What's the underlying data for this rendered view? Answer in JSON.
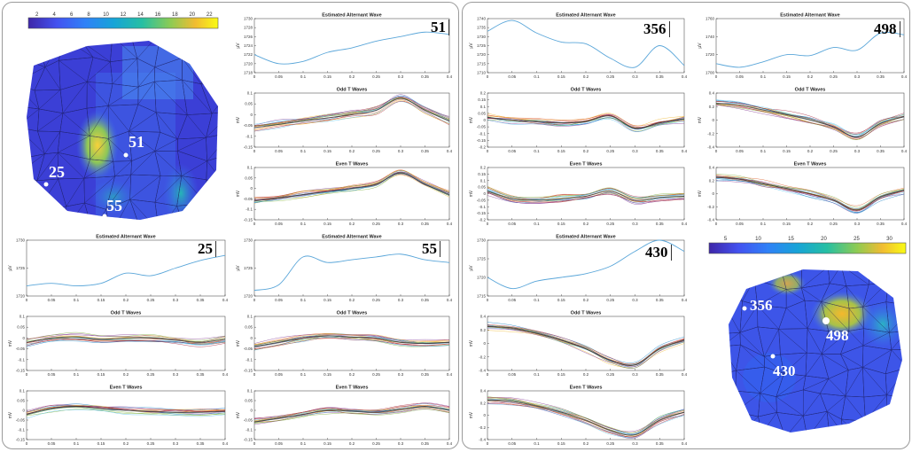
{
  "panels": [
    {
      "colorbar": {
        "ticks": [
          "2",
          "4",
          "6",
          "8",
          "10",
          "12",
          "14",
          "16",
          "18",
          "20",
          "22"
        ]
      },
      "mesh_labels": [
        "51",
        "25",
        "55"
      ]
    },
    {
      "colorbar": {
        "ticks": [
          "5",
          "10",
          "15",
          "20",
          "25",
          "30"
        ]
      },
      "mesh_labels": [
        "356",
        "498",
        "430"
      ]
    }
  ],
  "chart_data": [
    {
      "id": "51",
      "type": "line",
      "title": "Estimated Alternant Wave",
      "ylabel": "µV",
      "xlabel": "",
      "xlim": [
        0,
        0.4
      ],
      "ylim": [
        1718,
        1730
      ],
      "xticks": [
        "0",
        "0.05",
        "0.1",
        "0.15",
        "0.2",
        "0.25",
        "0.3",
        "0.35",
        "0.4"
      ],
      "yticks": [
        "1718",
        "1720",
        "1722",
        "1724",
        "1726",
        "1728",
        "1730"
      ],
      "x": [
        0,
        0.05,
        0.1,
        0.15,
        0.2,
        0.25,
        0.3,
        0.35,
        0.4
      ],
      "y": [
        1722,
        1720,
        1720.5,
        1722.5,
        1723.5,
        1725,
        1726,
        1727,
        1726.5
      ]
    },
    {
      "id": "51",
      "type": "line",
      "title": "Odd T Waves",
      "ylabel": "mV",
      "xlabel": "",
      "xlim": [
        0,
        0.4
      ],
      "ylim": [
        -0.15,
        0.1
      ],
      "xticks": [
        "0",
        "0.05",
        "0.1",
        "0.15",
        "0.2",
        "0.25",
        "0.3",
        "0.35",
        "0.4"
      ],
      "yticks": [
        "-0.15",
        "-0.1",
        "-0.05",
        "0",
        "0.05",
        "0.1"
      ],
      "x": [
        0,
        0.05,
        0.1,
        0.15,
        0.2,
        0.25,
        0.3,
        0.35,
        0.4
      ],
      "y": [
        -0.06,
        -0.045,
        -0.03,
        -0.015,
        0,
        0.02,
        0.075,
        0.02,
        -0.03
      ]
    },
    {
      "id": "51",
      "type": "line",
      "title": "Even T Waves",
      "ylabel": "mV",
      "xlabel": "",
      "xlim": [
        0,
        0.4
      ],
      "ylim": [
        -0.15,
        0.1
      ],
      "xticks": [
        "0",
        "0.05",
        "0.1",
        "0.15",
        "0.2",
        "0.25",
        "0.3",
        "0.35",
        "0.4"
      ],
      "yticks": [
        "-0.15",
        "-0.1",
        "-0.05",
        "0",
        "0.05",
        "0.1"
      ],
      "x": [
        0,
        0.05,
        0.1,
        0.15,
        0.2,
        0.25,
        0.3,
        0.35,
        0.4
      ],
      "y": [
        -0.06,
        -0.045,
        -0.03,
        -0.015,
        0,
        0.02,
        0.075,
        0.02,
        -0.03
      ]
    },
    {
      "id": "25",
      "type": "line",
      "title": "Estimated Alternant Wave",
      "ylabel": "µV",
      "xlabel": "",
      "xlim": [
        0,
        0.4
      ],
      "ylim": [
        1719,
        1730
      ],
      "xticks": [
        "0",
        "0.05",
        "0.1",
        "0.15",
        "0.2",
        "0.25",
        "0.3",
        "0.35",
        "0.4"
      ],
      "yticks": [
        "1720",
        "1725",
        "1730"
      ],
      "x": [
        0,
        0.05,
        0.1,
        0.15,
        0.2,
        0.25,
        0.3,
        0.35,
        0.4
      ],
      "y": [
        1721,
        1721.5,
        1721,
        1721.5,
        1723.5,
        1723,
        1724.5,
        1726,
        1727
      ]
    },
    {
      "id": "25",
      "type": "line",
      "title": "Odd T Waves",
      "ylabel": "mV",
      "xlabel": "",
      "xlim": [
        0,
        0.4
      ],
      "ylim": [
        -0.15,
        0.1
      ],
      "xticks": [
        "0",
        "0.05",
        "0.1",
        "0.15",
        "0.2",
        "0.25",
        "0.3",
        "0.35",
        "0.4"
      ],
      "yticks": [
        "-0.15",
        "-0.1",
        "-0.05",
        "0",
        "0.05",
        "0.1"
      ],
      "x": [
        0,
        0.05,
        0.1,
        0.15,
        0.2,
        0.25,
        0.3,
        0.35,
        0.4
      ],
      "y": [
        -0.02,
        0,
        0.005,
        -0.005,
        0,
        0,
        -0.01,
        -0.02,
        -0.005
      ]
    },
    {
      "id": "25",
      "type": "line",
      "title": "Even T Waves",
      "ylabel": "mV",
      "xlabel": "",
      "xlim": [
        0,
        0.4
      ],
      "ylim": [
        -0.15,
        0.1
      ],
      "xticks": [
        "0",
        "0.05",
        "0.1",
        "0.15",
        "0.2",
        "0.25",
        "0.3",
        "0.35",
        "0.4"
      ],
      "yticks": [
        "-0.15",
        "-0.1",
        "-0.05",
        "0",
        "0.05",
        "0.1"
      ],
      "x": [
        0,
        0.05,
        0.1,
        0.15,
        0.2,
        0.25,
        0.3,
        0.35,
        0.4
      ],
      "y": [
        -0.02,
        0.01,
        0.02,
        0.01,
        0,
        -0.005,
        -0.01,
        -0.01,
        -0.005
      ]
    },
    {
      "id": "55",
      "type": "line",
      "title": "Estimated Alternant Wave",
      "ylabel": "µV",
      "xlabel": "",
      "xlim": [
        0,
        0.4
      ],
      "ylim": [
        1720,
        1730
      ],
      "xticks": [
        "0",
        "0.05",
        "0.1",
        "0.15",
        "0.2",
        "0.25",
        "0.3",
        "0.35",
        "0.4"
      ],
      "yticks": [
        "1720",
        "1725",
        "1730"
      ],
      "x": [
        0,
        0.05,
        0.1,
        0.15,
        0.2,
        0.25,
        0.3,
        0.35,
        0.4
      ],
      "y": [
        1721,
        1722,
        1727,
        1726,
        1726.5,
        1727,
        1727.5,
        1726.5,
        1726
      ]
    },
    {
      "id": "55",
      "type": "line",
      "title": "Odd T Waves",
      "ylabel": "mV",
      "xlabel": "",
      "xlim": [
        0,
        0.4
      ],
      "ylim": [
        -0.15,
        0.1
      ],
      "xticks": [
        "0",
        "0.05",
        "0.1",
        "0.15",
        "0.2",
        "0.25",
        "0.3",
        "0.35",
        "0.4"
      ],
      "yticks": [
        "-0.15",
        "-0.1",
        "-0.05",
        "0",
        "0.05",
        "0.1"
      ],
      "x": [
        0,
        0.05,
        0.1,
        0.15,
        0.2,
        0.25,
        0.3,
        0.35,
        0.4
      ],
      "y": [
        -0.04,
        -0.02,
        0,
        0.01,
        0.005,
        0,
        -0.02,
        -0.025,
        -0.02
      ]
    },
    {
      "id": "55",
      "type": "line",
      "title": "Even T Waves",
      "ylabel": "mV",
      "xlabel": "",
      "xlim": [
        0,
        0.4
      ],
      "ylim": [
        -0.15,
        0.1
      ],
      "xticks": [
        "0",
        "0.05",
        "0.1",
        "0.15",
        "0.2",
        "0.25",
        "0.3",
        "0.35",
        "0.4"
      ],
      "yticks": [
        "-0.15",
        "-0.1",
        "-0.05",
        "0",
        "0.05",
        "0.1"
      ],
      "x": [
        0,
        0.05,
        0.1,
        0.15,
        0.2,
        0.25,
        0.3,
        0.35,
        0.4
      ],
      "y": [
        -0.06,
        -0.04,
        -0.02,
        0,
        -0.005,
        -0.01,
        0.005,
        0.02,
        0
      ]
    },
    {
      "id": "356",
      "type": "line",
      "title": "Estimated Alternant Wave",
      "ylabel": "µV",
      "xlabel": "",
      "xlim": [
        0,
        0.4
      ],
      "ylim": [
        1710,
        1740
      ],
      "xticks": [
        "0",
        "0.05",
        "0.1",
        "0.15",
        "0.2",
        "0.25",
        "0.3",
        "0.35",
        "0.4"
      ],
      "yticks": [
        "1710",
        "1715",
        "1720",
        "1725",
        "1730",
        "1735",
        "1740"
      ],
      "x": [
        0,
        0.05,
        0.1,
        0.15,
        0.2,
        0.25,
        0.3,
        0.35,
        0.4
      ],
      "y": [
        1733,
        1739,
        1732,
        1727,
        1726,
        1718,
        1713,
        1725,
        1714
      ]
    },
    {
      "id": "356",
      "type": "line",
      "title": "Odd T Waves",
      "ylabel": "mV",
      "xlabel": "",
      "xlim": [
        0,
        0.4
      ],
      "ylim": [
        -0.2,
        0.2
      ],
      "xticks": [
        "0",
        "0.05",
        "0.1",
        "0.15",
        "0.2",
        "0.25",
        "0.3",
        "0.35",
        "0.4"
      ],
      "yticks": [
        "-0.2",
        "-0.15",
        "-0.1",
        "-0.05",
        "0",
        "0.05",
        "0.1",
        "0.15",
        "0.2"
      ],
      "x": [
        0,
        0.05,
        0.1,
        0.15,
        0.2,
        0.25,
        0.3,
        0.35,
        0.4
      ],
      "y": [
        0.02,
        0,
        -0.01,
        -0.02,
        -0.01,
        0.03,
        -0.06,
        -0.02,
        0.01
      ]
    },
    {
      "id": "356",
      "type": "line",
      "title": "Even T Waves",
      "ylabel": "mV",
      "xlabel": "",
      "xlim": [
        0,
        0.4
      ],
      "ylim": [
        -0.2,
        0.2
      ],
      "xticks": [
        "0",
        "0.05",
        "0.1",
        "0.15",
        "0.2",
        "0.25",
        "0.3",
        "0.35",
        "0.4"
      ],
      "yticks": [
        "-0.2",
        "-0.15",
        "-0.1",
        "-0.05",
        "0",
        "0.05",
        "0.1",
        "0.15",
        "0.2"
      ],
      "x": [
        0,
        0.05,
        0.1,
        0.15,
        0.2,
        0.25,
        0.3,
        0.35,
        0.4
      ],
      "y": [
        0.02,
        -0.04,
        -0.05,
        -0.04,
        -0.02,
        0.02,
        -0.05,
        -0.03,
        -0.02
      ]
    },
    {
      "id": "430",
      "type": "line",
      "title": "Estimated Alternant Wave",
      "ylabel": "µV",
      "xlabel": "",
      "xlim": [
        0,
        0.4
      ],
      "ylim": [
        1715,
        1730
      ],
      "xticks": [
        "0",
        "0.05",
        "0.1",
        "0.15",
        "0.2",
        "0.25",
        "0.3",
        "0.35",
        "0.4"
      ],
      "yticks": [
        "1715",
        "1720",
        "1725",
        "1730"
      ],
      "x": [
        0,
        0.05,
        0.1,
        0.15,
        0.2,
        0.25,
        0.3,
        0.35,
        0.4
      ],
      "y": [
        1720,
        1717,
        1719,
        1720,
        1721,
        1723,
        1727,
        1730,
        1727
      ]
    },
    {
      "id": "430",
      "type": "line",
      "title": "Odd T Waves",
      "ylabel": "mV",
      "xlabel": "",
      "xlim": [
        0,
        0.4
      ],
      "ylim": [
        -0.4,
        0.4
      ],
      "xticks": [
        "0",
        "0.05",
        "0.1",
        "0.15",
        "0.2",
        "0.25",
        "0.3",
        "0.35",
        "0.4"
      ],
      "yticks": [
        "-0.4",
        "-0.2",
        "0",
        "0.2",
        "0.4"
      ],
      "x": [
        0,
        0.05,
        0.1,
        0.15,
        0.2,
        0.25,
        0.3,
        0.35,
        0.4
      ],
      "y": [
        0.25,
        0.23,
        0.15,
        0.05,
        -0.08,
        -0.25,
        -0.32,
        -0.08,
        0.05
      ]
    },
    {
      "id": "430",
      "type": "line",
      "title": "Even T Waves",
      "ylabel": "mV",
      "xlabel": "",
      "xlim": [
        0,
        0.4
      ],
      "ylim": [
        -0.4,
        0.4
      ],
      "xticks": [
        "0",
        "0.05",
        "0.1",
        "0.15",
        "0.2",
        "0.25",
        "0.3",
        "0.35",
        "0.4"
      ],
      "yticks": [
        "-0.4",
        "-0.2",
        "0",
        "0.2",
        "0.4"
      ],
      "x": [
        0,
        0.05,
        0.1,
        0.15,
        0.2,
        0.25,
        0.3,
        0.35,
        0.4
      ],
      "y": [
        0.25,
        0.23,
        0.15,
        0.05,
        -0.08,
        -0.25,
        -0.32,
        -0.08,
        0.05
      ]
    },
    {
      "id": "498",
      "type": "line",
      "title": "Estimated Alternant Wave",
      "ylabel": "µV",
      "xlabel": "",
      "xlim": [
        0,
        0.4
      ],
      "ylim": [
        1700,
        1760
      ],
      "xticks": [
        "0",
        "0.05",
        "0.1",
        "0.15",
        "0.2",
        "0.25",
        "0.3",
        "0.35",
        "0.4"
      ],
      "yticks": [
        "1700",
        "1720",
        "1740",
        "1760"
      ],
      "x": [
        0,
        0.05,
        0.1,
        0.15,
        0.2,
        0.25,
        0.3,
        0.35,
        0.4
      ],
      "y": [
        1710,
        1706,
        1712,
        1720,
        1719,
        1728,
        1725,
        1744,
        1742
      ]
    },
    {
      "id": "498",
      "type": "line",
      "title": "Odd T Waves",
      "ylabel": "mV",
      "xlabel": "",
      "xlim": [
        0,
        0.4
      ],
      "ylim": [
        -0.4,
        0.4
      ],
      "xticks": [
        "0",
        "0.05",
        "0.1",
        "0.15",
        "0.2",
        "0.25",
        "0.3",
        "0.35",
        "0.4"
      ],
      "yticks": [
        "-0.4",
        "-0.2",
        "0",
        "0.2",
        "0.4"
      ],
      "x": [
        0,
        0.05,
        0.1,
        0.15,
        0.2,
        0.25,
        0.3,
        0.35,
        0.4
      ],
      "y": [
        0.25,
        0.22,
        0.15,
        0.08,
        0,
        -0.1,
        -0.25,
        -0.05,
        0.05
      ]
    },
    {
      "id": "498",
      "type": "line",
      "title": "Even T Waves",
      "ylabel": "mV",
      "xlabel": "",
      "xlim": [
        0,
        0.4
      ],
      "ylim": [
        -0.4,
        0.4
      ],
      "xticks": [
        "0",
        "0.05",
        "0.1",
        "0.15",
        "0.2",
        "0.25",
        "0.3",
        "0.35",
        "0.4"
      ],
      "yticks": [
        "-0.4",
        "-0.2",
        "0",
        "0.2",
        "0.4"
      ],
      "x": [
        0,
        0.05,
        0.1,
        0.15,
        0.2,
        0.25,
        0.3,
        0.35,
        0.4
      ],
      "y": [
        0.25,
        0.22,
        0.15,
        0.08,
        0,
        -0.1,
        -0.25,
        -0.05,
        0.05
      ]
    }
  ]
}
